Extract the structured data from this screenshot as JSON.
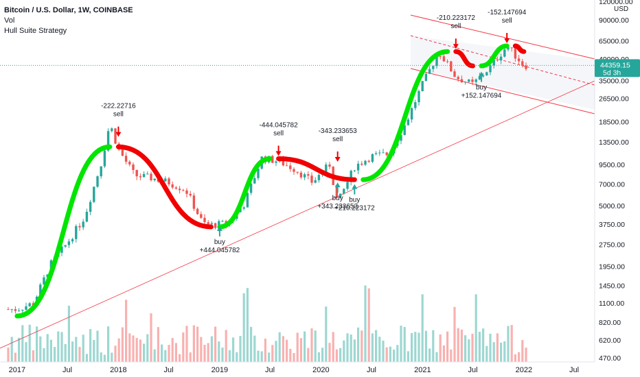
{
  "legend": {
    "title": "Bitcoin / U.S. Dollar, 1W, COINBASE",
    "indicator1": "Vol",
    "indicator2": "Hull Suite Strategy"
  },
  "price_axis": {
    "currency": "USD",
    "labels": [
      "120000.00",
      "90000.00",
      "65000.00",
      "49000.00",
      "35000.00",
      "26500.00",
      "18500.00",
      "13500.00",
      "9500.00",
      "7000.00",
      "5000.00",
      "3750.00",
      "2750.00",
      "1950.00",
      "1450.00",
      "1100.00",
      "820.00",
      "620.00",
      "470.00"
    ],
    "current_price": "44359.15",
    "countdown": "5d 3h"
  },
  "time_axis": {
    "labels": [
      "2017",
      "Jul",
      "2018",
      "Jul",
      "2019",
      "Jul",
      "2020",
      "Jul",
      "2021",
      "Jul",
      "2022",
      "Jul"
    ]
  },
  "colors": {
    "up": "#26a69a",
    "down": "#ef5350",
    "hull_up": "#00e600",
    "hull_down": "#f00000",
    "channel": "#f23645",
    "price_line": "#26a69a"
  },
  "chart_data": {
    "type": "candlestick",
    "scale": "log",
    "ylim": [
      470,
      120000
    ],
    "x": [
      "2017-01",
      "2017-03",
      "2017-05",
      "2017-07",
      "2017-09",
      "2017-11",
      "2017-12",
      "2018-01",
      "2018-03",
      "2018-05",
      "2018-07",
      "2018-09",
      "2018-11",
      "2018-12",
      "2019-02",
      "2019-04",
      "2019-06",
      "2019-08",
      "2019-10",
      "2019-12",
      "2020-02",
      "2020-03",
      "2020-05",
      "2020-07",
      "2020-09",
      "2020-11",
      "2021-01",
      "2021-03",
      "2021-05",
      "2021-07",
      "2021-09",
      "2021-11",
      "2022-01"
    ],
    "close": [
      1000,
      1100,
      2000,
      2800,
      4200,
      9800,
      18000,
      12000,
      8000,
      7700,
      7200,
      6400,
      3800,
      3700,
      3800,
      5200,
      10500,
      10000,
      8800,
      7200,
      9500,
      5200,
      9200,
      10800,
      11200,
      18000,
      33000,
      55000,
      37000,
      33000,
      43000,
      60000,
      44359
    ],
    "hull_suite": [
      {
        "x": "2017-01",
        "y": 900,
        "trend": "up"
      },
      {
        "x": "2017-12",
        "y": 12500,
        "trend": "up"
      },
      {
        "x": "2018-01",
        "y": 12500,
        "trend": "down"
      },
      {
        "x": "2018-12",
        "y": 3600,
        "trend": "down"
      },
      {
        "x": "2019-01",
        "y": 3600,
        "trend": "up"
      },
      {
        "x": "2019-07",
        "y": 10400,
        "trend": "up"
      },
      {
        "x": "2019-08",
        "y": 10400,
        "trend": "down"
      },
      {
        "x": "2020-05",
        "y": 7500,
        "trend": "down"
      },
      {
        "x": "2020-06",
        "y": 7500,
        "trend": "up"
      },
      {
        "x": "2021-04",
        "y": 55000,
        "trend": "up"
      },
      {
        "x": "2021-05",
        "y": 55000,
        "trend": "down"
      },
      {
        "x": "2021-07",
        "y": 44000,
        "trend": "down"
      },
      {
        "x": "2021-08",
        "y": 44000,
        "trend": "up"
      },
      {
        "x": "2021-11",
        "y": 60000,
        "trend": "up"
      },
      {
        "x": "2021-12",
        "y": 60000,
        "trend": "down"
      },
      {
        "x": "2022-01",
        "y": 55000,
        "trend": "down"
      }
    ],
    "signals": [
      {
        "type": "sell",
        "value": "-222.22716",
        "x": "2018-01",
        "y": 14000
      },
      {
        "type": "buy",
        "value": "+444.045782",
        "x": "2019-01",
        "y": 3800
      },
      {
        "type": "sell",
        "value": "-444.045782",
        "x": "2019-08",
        "y": 10400
      },
      {
        "type": "sell",
        "value": "-343.233653",
        "x": "2020-03",
        "y": 9500
      },
      {
        "type": "buy",
        "value": "+343.233653",
        "x": "2020-03",
        "y": 7500
      },
      {
        "type": "buy",
        "value": "+210.223172",
        "x": "2020-05",
        "y": 7300
      },
      {
        "type": "sell",
        "value": "-210.223172",
        "x": "2021-05",
        "y": 55000
      },
      {
        "type": "buy",
        "value": "+152.147694",
        "x": "2021-08",
        "y": 42000
      },
      {
        "type": "sell",
        "value": "-152.147694",
        "x": "2021-11",
        "y": 60000
      }
    ]
  }
}
